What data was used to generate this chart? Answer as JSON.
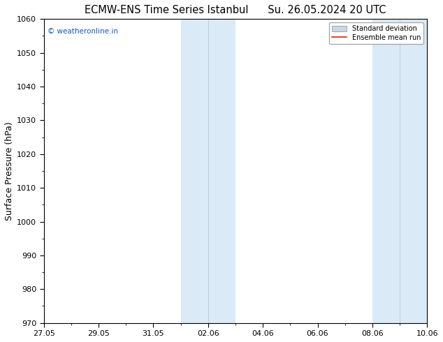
{
  "title_left": "ECMW-ENS Time Series Istanbul",
  "title_right": "Su. 26.05.2024 20 UTC",
  "ylabel": "Surface Pressure (hPa)",
  "ylim": [
    970,
    1060
  ],
  "yticks": [
    970,
    980,
    990,
    1000,
    1010,
    1020,
    1030,
    1040,
    1050,
    1060
  ],
  "xtick_labels": [
    "27.05",
    "29.05",
    "31.05",
    "02.06",
    "04.06",
    "06.06",
    "08.06",
    "10.06"
  ],
  "xtick_positions_days": [
    0,
    2,
    4,
    6,
    8,
    10,
    12,
    14
  ],
  "shaded_regions": [
    {
      "start_day": 5.0,
      "end_day": 6.0
    },
    {
      "start_day": 6.0,
      "end_day": 7.0
    },
    {
      "start_day": 11.0,
      "end_day": 12.0
    },
    {
      "start_day": 12.0,
      "end_day": 13.0
    }
  ],
  "shade_color": "#daeaf7",
  "shade_color2": "#e2eef8",
  "bg_color": "#ffffff",
  "title_fontsize": 10.5,
  "tick_fontsize": 8,
  "ylabel_fontsize": 9,
  "watermark_text": "© weatheronline.in",
  "watermark_color": "#1155cc",
  "legend_std_color": "#c8d8e8",
  "legend_mean_color": "#dd2200",
  "spine_color": "#000000",
  "tick_color": "#000000"
}
